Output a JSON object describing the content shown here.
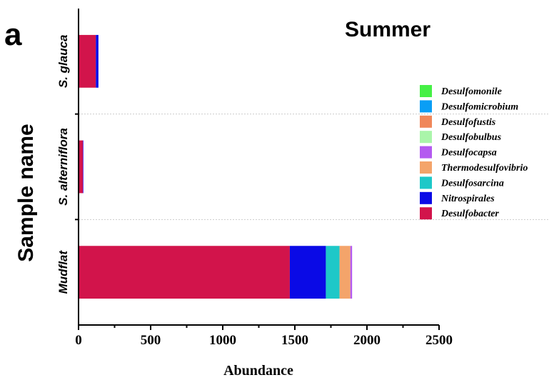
{
  "panel_label": "a",
  "chart_data": {
    "type": "bar",
    "orientation": "horizontal",
    "stacked": true,
    "title": "Summer",
    "xlabel": "Abundance",
    "ylabel": "Sample name",
    "xlim": [
      0,
      2500
    ],
    "xticks": [
      "0",
      "500",
      "1000",
      "1500",
      "2000",
      "2500"
    ],
    "categories": [
      "S. glauca",
      "S. alterniflora",
      "Mudflat"
    ],
    "legend_position": "right",
    "series": [
      {
        "name": "Desulfobacter",
        "color": "#d2144b",
        "values": [
          120,
          30,
          1465
        ]
      },
      {
        "name": "Nitrospirales",
        "color": "#0a0ae6",
        "values": [
          18,
          3,
          250
        ]
      },
      {
        "name": "Desulfosarcina",
        "color": "#1ec8c8",
        "values": [
          0,
          0,
          95
        ]
      },
      {
        "name": "Thermodesulfovibrio",
        "color": "#f4a46a",
        "values": [
          0,
          0,
          75
        ]
      },
      {
        "name": "Desulfocapsa",
        "color": "#b45af0",
        "values": [
          0,
          2,
          12
        ]
      },
      {
        "name": "Desulfobulbus",
        "color": "#aaf5aa",
        "values": [
          0,
          0,
          0
        ]
      },
      {
        "name": "Desulfofustis",
        "color": "#f0875a",
        "values": [
          0,
          0,
          0
        ]
      },
      {
        "name": "Desulfomicrobium",
        "color": "#0a9ef5",
        "values": [
          0,
          0,
          0
        ]
      },
      {
        "name": "Desulfomonile",
        "color": "#46f046",
        "values": [
          0,
          0,
          0
        ]
      }
    ],
    "legend_order": [
      "Desulfomonile",
      "Desulfomicrobium",
      "Desulfofustis",
      "Desulfobulbus",
      "Desulfocapsa",
      "Thermodesulfovibrio",
      "Desulfosarcina",
      "Nitrospirales",
      "Desulfobacter"
    ]
  }
}
